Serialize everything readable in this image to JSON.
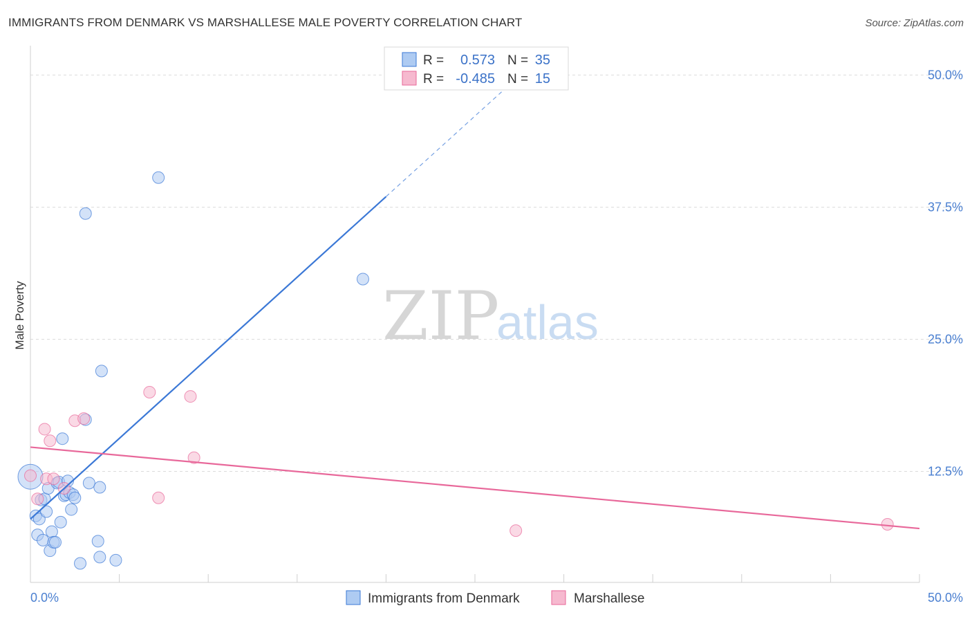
{
  "title": "IMMIGRANTS FROM DENMARK VS MARSHALLESE MALE POVERTY CORRELATION CHART",
  "source": "Source: ZipAtlas.com",
  "watermark": {
    "zip": "ZIP",
    "atlas": "atlas"
  },
  "colors": {
    "blue": "#3b78d6",
    "blue_fill": "#aecbf2",
    "pink": "#e8689a",
    "pink_fill": "#f6b9cf",
    "tick": "#4a7fd0",
    "grid": "#dcdcdc"
  },
  "legend": {
    "rows": [
      {
        "r_label": "R =",
        "r_value": "0.573",
        "n_label": "N =",
        "n_value": "35"
      },
      {
        "r_label": "R =",
        "r_value": "-0.485",
        "n_label": "N =",
        "n_value": "15"
      }
    ]
  },
  "bottom_legend": {
    "series_a": "Immigrants from Denmark",
    "series_b": "Marshallese"
  },
  "chart_data": {
    "type": "scatter",
    "title": "IMMIGRANTS FROM DENMARK VS MARSHALLESE MALE POVERTY CORRELATION CHART",
    "xlabel": "",
    "ylabel": "Male Poverty",
    "xlim": [
      0,
      50
    ],
    "ylim": [
      2,
      52
    ],
    "x_tick_labels": [
      "0.0%",
      "50.0%"
    ],
    "y_ticks": [
      {
        "value": 12.5,
        "label": "12.5%"
      },
      {
        "value": 25.0,
        "label": "25.0%"
      },
      {
        "value": 37.5,
        "label": "37.5%"
      },
      {
        "value": 50.0,
        "label": "50.0%"
      }
    ],
    "series": [
      {
        "name": "Immigrants from Denmark",
        "r": 0.573,
        "n": 35,
        "trend": {
          "x_start": 0,
          "y_start": 8.0,
          "x_solid_end": 20.0,
          "x_dash_end": 26.5
        },
        "points": [
          [
            0.0,
            12.0
          ],
          [
            0.3,
            8.3
          ],
          [
            0.4,
            6.5
          ],
          [
            0.5,
            8.0
          ],
          [
            0.6,
            9.8
          ],
          [
            0.7,
            6.0
          ],
          [
            0.8,
            9.9
          ],
          [
            0.9,
            8.7
          ],
          [
            1.0,
            10.9
          ],
          [
            1.1,
            5.0
          ],
          [
            1.2,
            6.8
          ],
          [
            1.3,
            5.8
          ],
          [
            1.4,
            5.8
          ],
          [
            1.5,
            11.4
          ],
          [
            1.6,
            11.5
          ],
          [
            1.7,
            7.7
          ],
          [
            1.8,
            15.6
          ],
          [
            1.9,
            10.2
          ],
          [
            2.0,
            10.3
          ],
          [
            2.1,
            11.6
          ],
          [
            2.2,
            10.5
          ],
          [
            2.3,
            8.9
          ],
          [
            2.4,
            10.3
          ],
          [
            2.5,
            10.0
          ],
          [
            2.8,
            3.8
          ],
          [
            3.1,
            17.4
          ],
          [
            3.3,
            11.4
          ],
          [
            3.8,
            5.9
          ],
          [
            3.9,
            11.0
          ],
          [
            3.9,
            4.4
          ],
          [
            4.0,
            22.0
          ],
          [
            4.8,
            4.1
          ],
          [
            7.2,
            40.3
          ],
          [
            18.7,
            30.7
          ],
          [
            3.1,
            36.9
          ]
        ]
      },
      {
        "name": "Marshallese",
        "r": -0.485,
        "n": 15,
        "trend": {
          "x_start": 0,
          "y_start": 14.8,
          "x_end": 50,
          "y_end": 7.1
        },
        "points": [
          [
            0.0,
            12.1
          ],
          [
            0.4,
            9.9
          ],
          [
            0.8,
            16.5
          ],
          [
            0.9,
            11.8
          ],
          [
            1.1,
            15.4
          ],
          [
            1.3,
            11.8
          ],
          [
            1.9,
            10.9
          ],
          [
            2.5,
            17.3
          ],
          [
            3.0,
            17.5
          ],
          [
            6.7,
            20.0
          ],
          [
            7.2,
            10.0
          ],
          [
            9.0,
            19.6
          ],
          [
            9.2,
            13.8
          ],
          [
            27.3,
            6.9
          ],
          [
            48.2,
            7.5
          ]
        ]
      }
    ]
  }
}
